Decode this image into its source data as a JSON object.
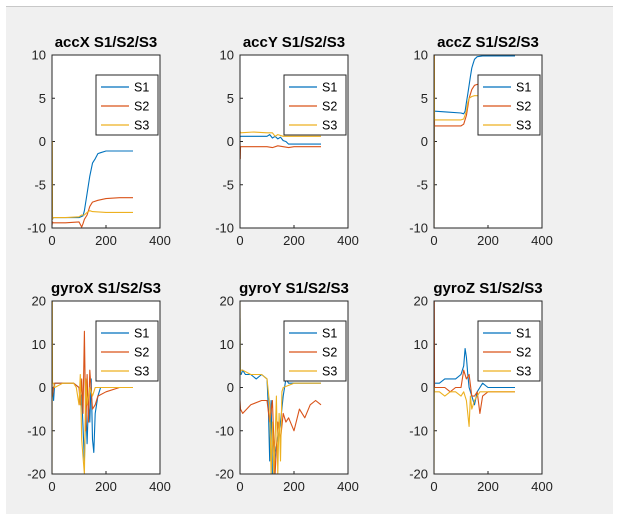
{
  "figure": {
    "colors": {
      "S1": "#0072BD",
      "S2": "#D95319",
      "S3": "#EDB120",
      "background": "#f0f0f0"
    }
  },
  "chart_data": [
    {
      "type": "line",
      "title": "accX S1/S2/S3",
      "xlim": [
        0,
        400
      ],
      "ylim": [
        -10,
        10
      ],
      "xticks": [
        0,
        200,
        400
      ],
      "yticks": [
        -10,
        -5,
        0,
        5,
        10
      ],
      "legend": {
        "position": "top-right",
        "entries": [
          "S1",
          "S2",
          "S3"
        ]
      },
      "series": [
        {
          "name": "S1",
          "x": [
            0,
            2,
            4,
            50,
            100,
            115,
            120,
            130,
            140,
            150,
            160,
            170,
            180,
            200,
            250,
            300
          ],
          "y": [
            -6,
            -9,
            -8.8,
            -8.8,
            -8.8,
            -8.6,
            -8,
            -6,
            -4,
            -2.5,
            -2,
            -1.4,
            -1.3,
            -1.1,
            -1.1,
            -1.1
          ]
        },
        {
          "name": "S2",
          "x": [
            0,
            2,
            4,
            50,
            100,
            110,
            115,
            120,
            130,
            140,
            150,
            170,
            200,
            250,
            300
          ],
          "y": [
            -9.7,
            -9.3,
            -9.4,
            -9.4,
            -9.3,
            -9.9,
            -9.5,
            -9,
            -8.5,
            -7.5,
            -7,
            -6.8,
            -6.6,
            -6.5,
            -6.5
          ]
        },
        {
          "name": "S3",
          "x": [
            0,
            1,
            2,
            4,
            50,
            100,
            110,
            120,
            130,
            140,
            150,
            200,
            250,
            300
          ],
          "y": [
            -6,
            0,
            -9,
            -8.8,
            -8.8,
            -8.7,
            -8.5,
            -8.5,
            -8.2,
            -8,
            -8.1,
            -8.2,
            -8.2,
            -8.2
          ]
        }
      ]
    },
    {
      "type": "line",
      "title": "accY S1/S2/S3",
      "xlim": [
        0,
        400
      ],
      "ylim": [
        -10,
        10
      ],
      "xticks": [
        0,
        200,
        400
      ],
      "yticks": [
        -10,
        -5,
        0,
        5,
        10
      ],
      "legend": {
        "position": "top-right",
        "entries": [
          "S1",
          "S2",
          "S3"
        ]
      },
      "series": [
        {
          "name": "S1",
          "x": [
            0,
            2,
            50,
            100,
            110,
            120,
            130,
            140,
            150,
            160,
            170,
            180,
            200,
            250,
            300
          ],
          "y": [
            0.5,
            0.6,
            0.6,
            0.6,
            0.8,
            0.4,
            0.6,
            0.3,
            0.5,
            0.1,
            0,
            -0.3,
            -0.3,
            -0.3,
            -0.3
          ]
        },
        {
          "name": "S2",
          "x": [
            0,
            1,
            2,
            4,
            50,
            100,
            120,
            140,
            160,
            180,
            200,
            250,
            300
          ],
          "y": [
            0,
            -2,
            -0.6,
            -0.6,
            -0.6,
            -0.6,
            -0.7,
            -0.5,
            -0.6,
            -0.7,
            -0.6,
            -0.6,
            -0.6
          ]
        },
        {
          "name": "S3",
          "x": [
            0,
            2,
            50,
            100,
            120,
            130,
            140,
            160,
            200,
            250,
            300
          ],
          "y": [
            1.2,
            1,
            1.1,
            1,
            1,
            0.6,
            0.8,
            0.6,
            0.6,
            0.6,
            0.6
          ]
        }
      ]
    },
    {
      "type": "line",
      "title": "accZ S1/S2/S3",
      "xlim": [
        0,
        400
      ],
      "ylim": [
        -10,
        10
      ],
      "xticks": [
        0,
        200,
        400
      ],
      "yticks": [
        -10,
        -5,
        0,
        5,
        10
      ],
      "legend": {
        "position": "top-right",
        "entries": [
          "S1",
          "S2",
          "S3"
        ]
      },
      "series": [
        {
          "name": "S1",
          "x": [
            0,
            1,
            2,
            4,
            50,
            100,
            110,
            115,
            120,
            125,
            130,
            135,
            140,
            145,
            150,
            160,
            180,
            200,
            250,
            300
          ],
          "y": [
            -10,
            4,
            3.5,
            3.5,
            3.4,
            3.3,
            3.2,
            3.5,
            4.5,
            5.5,
            6.5,
            7.5,
            8.5,
            9,
            9.5,
            9.8,
            9.9,
            9.9,
            9.9,
            9.9
          ]
        },
        {
          "name": "S2",
          "x": [
            0,
            1,
            2,
            4,
            50,
            100,
            110,
            120,
            125,
            130,
            140,
            150,
            160,
            200,
            250,
            300
          ],
          "y": [
            -10,
            10,
            1.8,
            1.8,
            1.8,
            1.8,
            2,
            3,
            4,
            5,
            6,
            6.5,
            6.6,
            6.6,
            6.6,
            6.6
          ]
        },
        {
          "name": "S3",
          "x": [
            0,
            1,
            2,
            4,
            50,
            100,
            110,
            120,
            125,
            130,
            140,
            150,
            200,
            250,
            300
          ],
          "y": [
            -10,
            10,
            2.5,
            2.5,
            2.5,
            2.5,
            2.6,
            3.5,
            4.5,
            5,
            5.2,
            5.3,
            5.3,
            5.3,
            5.3
          ]
        }
      ]
    },
    {
      "type": "line",
      "title": "gyroX S1/S2/S3",
      "xlim": [
        0,
        400
      ],
      "ylim": [
        -20,
        20
      ],
      "xticks": [
        0,
        200,
        400
      ],
      "yticks": [
        -20,
        -10,
        0,
        10,
        20
      ],
      "legend": {
        "position": "top-right",
        "entries": [
          "S1",
          "S2",
          "S3"
        ]
      },
      "series": [
        {
          "name": "S1",
          "x": [
            0,
            2,
            6,
            10,
            40,
            80,
            100,
            110,
            115,
            120,
            125,
            130,
            135,
            140,
            145,
            150,
            155,
            160,
            170,
            180,
            200,
            250,
            300
          ],
          "y": [
            -2,
            0,
            -3,
            1,
            1,
            1,
            0,
            -2,
            -9,
            -17,
            -5,
            -13,
            -3,
            -8,
            2,
            -12,
            -15,
            -6,
            -2,
            0,
            0,
            0,
            0
          ]
        },
        {
          "name": "S2",
          "x": [
            0,
            2,
            6,
            10,
            40,
            80,
            100,
            105,
            110,
            115,
            120,
            125,
            130,
            135,
            140,
            150,
            160,
            170,
            200,
            250,
            300
          ],
          "y": [
            -1,
            -2,
            0,
            1,
            1,
            1,
            0,
            -4,
            2,
            -6,
            13,
            -10,
            3,
            -8,
            4,
            -5,
            -4,
            -2,
            -1,
            0,
            0
          ]
        },
        {
          "name": "S3",
          "x": [
            0,
            1,
            2,
            6,
            10,
            40,
            80,
            90,
            100,
            105,
            110,
            115,
            120,
            125,
            130,
            140,
            150,
            160,
            200,
            250,
            300
          ],
          "y": [
            -20,
            20,
            1,
            1,
            0,
            1,
            1,
            0,
            -4,
            3,
            -12,
            -16,
            -20,
            2,
            -4,
            0,
            -2,
            0,
            0,
            0,
            0
          ]
        }
      ]
    },
    {
      "type": "line",
      "title": "gyroY S1/S2/S3",
      "xlim": [
        0,
        400
      ],
      "ylim": [
        -20,
        20
      ],
      "xticks": [
        0,
        200,
        400
      ],
      "yticks": [
        -20,
        -10,
        0,
        10,
        20
      ],
      "legend": {
        "position": "top-right",
        "entries": [
          "S1",
          "S2",
          "S3"
        ]
      },
      "series": [
        {
          "name": "S1",
          "x": [
            0,
            1,
            2,
            4,
            10,
            20,
            40,
            60,
            80,
            100,
            105,
            110,
            115,
            120,
            125,
            130,
            140,
            150,
            160,
            170,
            180,
            200,
            250,
            300
          ],
          "y": [
            16,
            4,
            3,
            3,
            4,
            3,
            3,
            2,
            3,
            2,
            -5,
            -17,
            -3,
            -20,
            -20,
            -15,
            -12,
            -8,
            -2,
            2,
            1,
            1,
            1,
            1
          ]
        },
        {
          "name": "S2",
          "x": [
            0,
            2,
            10,
            40,
            80,
            100,
            110,
            120,
            130,
            140,
            150,
            160,
            170,
            180,
            200,
            220,
            240,
            260,
            280,
            300
          ],
          "y": [
            -3,
            -5,
            -6,
            -4,
            -3,
            -3,
            -8,
            -3,
            -20,
            -8,
            -12,
            -6,
            -8,
            -7,
            -10,
            -5,
            -7,
            -4,
            -3,
            -4
          ]
        },
        {
          "name": "S3",
          "x": [
            0,
            1,
            2,
            10,
            40,
            80,
            100,
            110,
            115,
            120,
            125,
            130,
            135,
            140,
            145,
            150,
            155,
            160,
            200,
            250,
            300
          ],
          "y": [
            20,
            3,
            4,
            4,
            3,
            3,
            2,
            -4,
            -20,
            -8,
            -20,
            -12,
            -2,
            -20,
            -6,
            -17,
            -1,
            0,
            1,
            1,
            1
          ]
        }
      ]
    },
    {
      "type": "line",
      "title": "gyroZ S1/S2/S3",
      "xlim": [
        0,
        400
      ],
      "ylim": [
        -20,
        20
      ],
      "xticks": [
        0,
        200,
        400
      ],
      "yticks": [
        -20,
        -10,
        0,
        10,
        20
      ],
      "legend": {
        "position": "top-right",
        "entries": [
          "S1",
          "S2",
          "S3"
        ]
      },
      "series": [
        {
          "name": "S1",
          "x": [
            0,
            2,
            20,
            40,
            60,
            80,
            100,
            110,
            115,
            120,
            125,
            130,
            140,
            150,
            160,
            170,
            180,
            200,
            250,
            300
          ],
          "y": [
            2,
            1,
            1,
            2,
            2,
            2,
            3,
            5,
            9,
            7,
            3,
            0,
            -2,
            -4,
            -1,
            0,
            1,
            0,
            0,
            0
          ]
        },
        {
          "name": "S2",
          "x": [
            0,
            1,
            2,
            20,
            40,
            60,
            80,
            100,
            110,
            120,
            130,
            140,
            150,
            160,
            170,
            180,
            200,
            250,
            300
          ],
          "y": [
            0,
            20,
            0,
            0,
            0,
            -1,
            0,
            0,
            4,
            2,
            3,
            -2,
            -2,
            -1,
            -6,
            -2,
            -1,
            -1,
            -1
          ]
        },
        {
          "name": "S3",
          "x": [
            0,
            1,
            2,
            20,
            40,
            60,
            80,
            100,
            110,
            120,
            130,
            135,
            140,
            150,
            160,
            170,
            200,
            250,
            300
          ],
          "y": [
            -20,
            0,
            -1,
            -1,
            -2,
            -1,
            -1,
            -2,
            -1,
            -3,
            -9,
            -2,
            -5,
            -3,
            -2,
            -1,
            -1,
            -1,
            -1
          ]
        }
      ]
    }
  ]
}
